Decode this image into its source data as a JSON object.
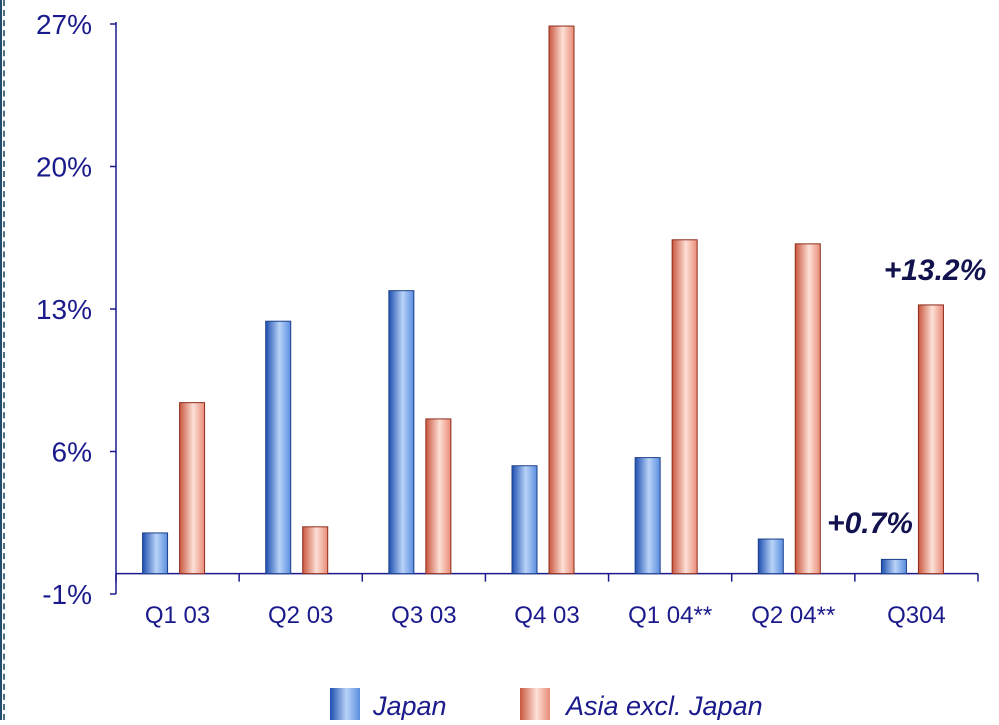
{
  "colors": {
    "japan": "#5a8ee0",
    "asia": "#e98b78",
    "axis": "#1a1a8c",
    "annotation": "#12124f",
    "frame": "#1f4d6b"
  },
  "chart_data": {
    "type": "bar",
    "categories": [
      "Q1 03",
      "Q2 03",
      "Q3 03",
      "Q4 03",
      "Q1 04**",
      "Q2 04**",
      "Q304"
    ],
    "series": [
      {
        "name": "Japan",
        "values": [
          2.0,
          12.4,
          13.9,
          5.3,
          5.7,
          1.7,
          0.7
        ]
      },
      {
        "name": "Asia excl. Japan",
        "values": [
          8.4,
          2.3,
          7.6,
          26.9,
          16.4,
          16.2,
          13.2
        ]
      }
    ],
    "yticks": [
      "-1%",
      "6%",
      "13%",
      "20%",
      "27%"
    ],
    "ylim": [
      -1,
      27
    ],
    "yaxis_at": 0,
    "annotations": [
      "+13.2%",
      "+0.7%"
    ],
    "legend": [
      "Japan",
      "Asia excl. Japan"
    ],
    "legend_position": "bottom",
    "grid": false
  }
}
